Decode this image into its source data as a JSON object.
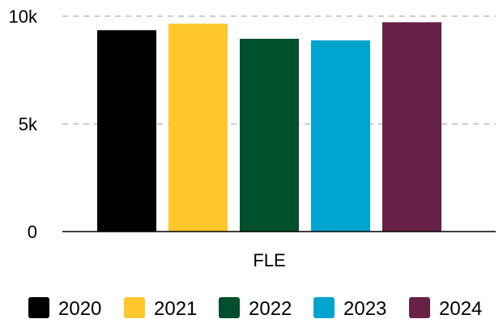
{
  "chart_data": {
    "type": "bar",
    "title": "",
    "xlabel": "",
    "ylabel": "",
    "categories": [
      "FLE"
    ],
    "series": [
      {
        "name": "2020",
        "values": [
          9350
        ],
        "color": "#000000"
      },
      {
        "name": "2021",
        "values": [
          9650
        ],
        "color": "#ffc72c"
      },
      {
        "name": "2022",
        "values": [
          8950
        ],
        "color": "#004f2d"
      },
      {
        "name": "2023",
        "values": [
          8880
        ],
        "color": "#00a5cf"
      },
      {
        "name": "2024",
        "values": [
          9720
        ],
        "color": "#672146"
      }
    ],
    "yticks": [
      {
        "value": 0,
        "label": "0"
      },
      {
        "value": 5000,
        "label": "5k"
      },
      {
        "value": 10000,
        "label": "10k"
      }
    ],
    "ylim": [
      0,
      10000
    ],
    "grid": true,
    "legend_position": "bottom"
  }
}
